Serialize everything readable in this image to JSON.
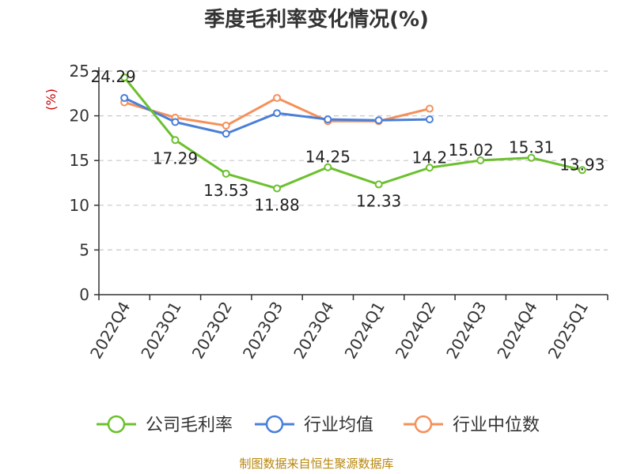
{
  "chart_data": {
    "type": "line",
    "title": "季度毛利率变化情况(%)",
    "ylabel": "(%)",
    "categories": [
      "2022Q4",
      "2023Q1",
      "2023Q2",
      "2023Q3",
      "2023Q4",
      "2024Q1",
      "2024Q2",
      "2024Q3",
      "2024Q4",
      "2025Q1"
    ],
    "ylim": [
      0,
      25
    ],
    "yticks": [
      0,
      5,
      10,
      15,
      20,
      25
    ],
    "grid": true,
    "legend_position": "bottom",
    "series": [
      {
        "name": "公司毛利率",
        "color": "#6cc02f",
        "values": [
          24.29,
          17.29,
          13.53,
          11.88,
          14.25,
          12.33,
          14.2,
          15.02,
          15.31,
          13.93
        ],
        "labels": [
          "24.29",
          "17.29",
          "13.53",
          "11.88",
          "14.25",
          "12.33",
          "14.2",
          "15.02",
          "15.31",
          "13.93"
        ]
      },
      {
        "name": "行业均值",
        "color": "#4a7fd8",
        "values": [
          22.0,
          19.3,
          18.0,
          20.3,
          19.6,
          19.5,
          19.6,
          null,
          null,
          null
        ]
      },
      {
        "name": "行业中位数",
        "color": "#f5905a",
        "values": [
          21.5,
          19.8,
          18.9,
          22.0,
          19.4,
          19.4,
          20.8,
          null,
          null,
          null
        ]
      }
    ]
  },
  "footer": "制图数据来自恒生聚源数据库"
}
